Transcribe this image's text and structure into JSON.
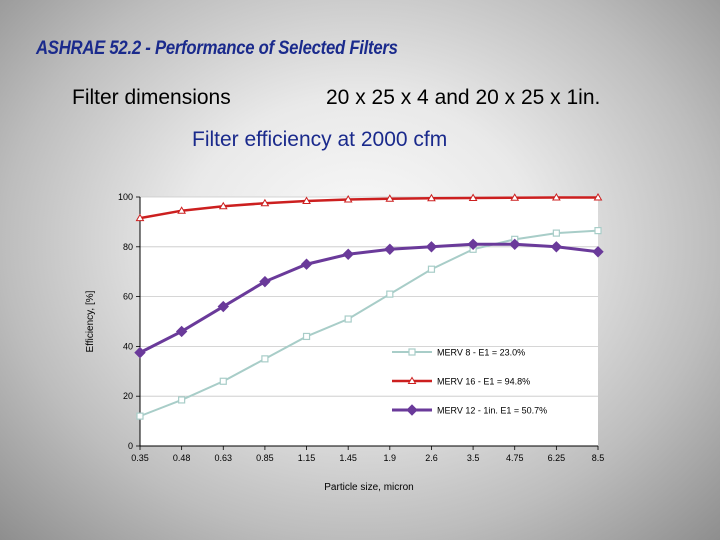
{
  "slide": {
    "title": "ASHRAE 52.2 - Performance of Selected Filters",
    "dimensions_label": "Filter dimensions",
    "dimensions_value": "20 x 25 x 4  and 20 x 25 x 1in.",
    "subtitle": "Filter efficiency at 2000 cfm"
  },
  "chart_data": {
    "type": "line",
    "title": "",
    "xlabel": "Particle size, micron",
    "ylabel": "Efficiency, [%]",
    "categories": [
      "0.35",
      "0.48",
      "0.63",
      "0.85",
      "1.15",
      "1.45",
      "1.9",
      "2.6",
      "3.5",
      "4.75",
      "6.25",
      "8.5"
    ],
    "ylim": [
      0,
      100
    ],
    "yticks": [
      0,
      20,
      40,
      60,
      80,
      100
    ],
    "grid": "horizontal",
    "legend_position": "lower-right",
    "series": [
      {
        "name": "MERV 8 - E1 = 23.0%",
        "color": "#a8cdc8",
        "marker": "square",
        "values": [
          12,
          18.5,
          26,
          35,
          44,
          51,
          61,
          71,
          79,
          83,
          85.5,
          86.5
        ]
      },
      {
        "name": "MERV 16 - E1 = 94.8%",
        "color": "#cc1f1f",
        "marker": "triangle",
        "values": [
          91.5,
          94.5,
          96.3,
          97.5,
          98.4,
          99,
          99.3,
          99.5,
          99.6,
          99.7,
          99.8,
          99.8
        ]
      },
      {
        "name": "MERV 12 - 1in. E1 = 50.7%",
        "color": "#6a3a9a",
        "marker": "diamond",
        "values": [
          37.5,
          46,
          56,
          66,
          73,
          77,
          79,
          80,
          81,
          81,
          80,
          78
        ]
      }
    ]
  }
}
